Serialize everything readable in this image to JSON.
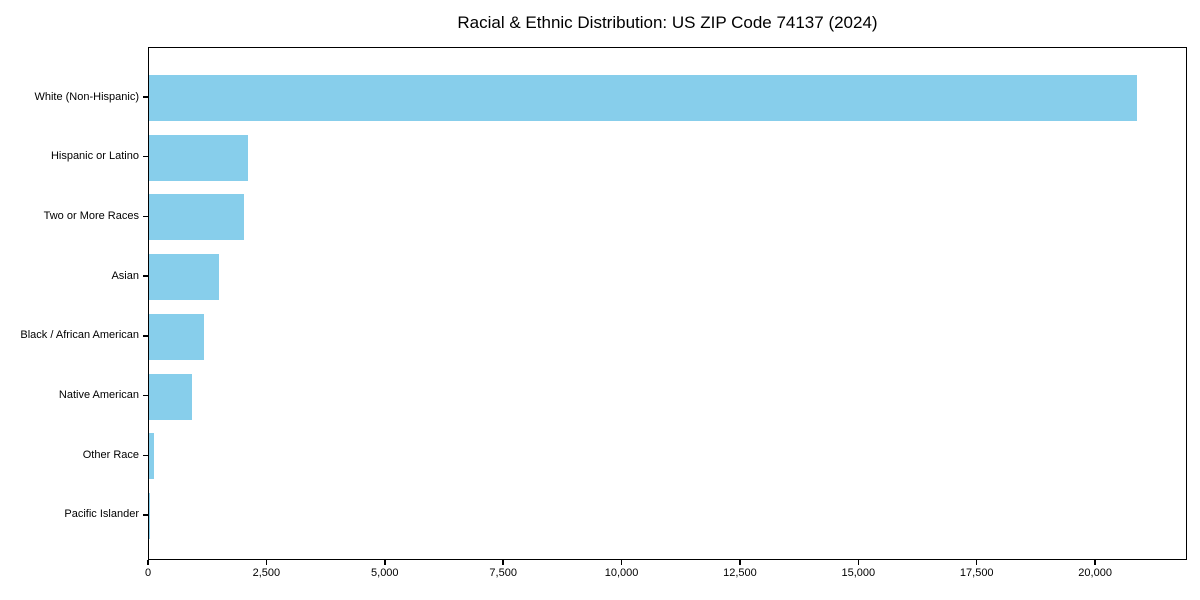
{
  "chart_data": {
    "type": "bar",
    "orientation": "horizontal",
    "title": "Racial & Ethnic Distribution: US ZIP Code 74137 (2024)",
    "categories": [
      "White (Non-Hispanic)",
      "Hispanic or Latino",
      "Two or More Races",
      "Asian",
      "Black / African American",
      "Native American",
      "Other Race",
      "Pacific Islander"
    ],
    "values": [
      20870,
      2080,
      2000,
      1470,
      1170,
      915,
      115,
      10
    ],
    "xlabel": "",
    "ylabel": "",
    "xlim": [
      0,
      21940
    ],
    "x_tick_values": [
      0,
      2500,
      5000,
      7500,
      10000,
      12500,
      15000,
      17500,
      20000
    ],
    "x_tick_labels": [
      "0",
      "2,500",
      "5,000",
      "7,500",
      "10,000",
      "12,500",
      "15,000",
      "17,500",
      "20,000"
    ],
    "bar_color": "#87CEEB",
    "background_color": "#ffffff",
    "axis_color": "#000000",
    "grid": false,
    "legend": null
  }
}
